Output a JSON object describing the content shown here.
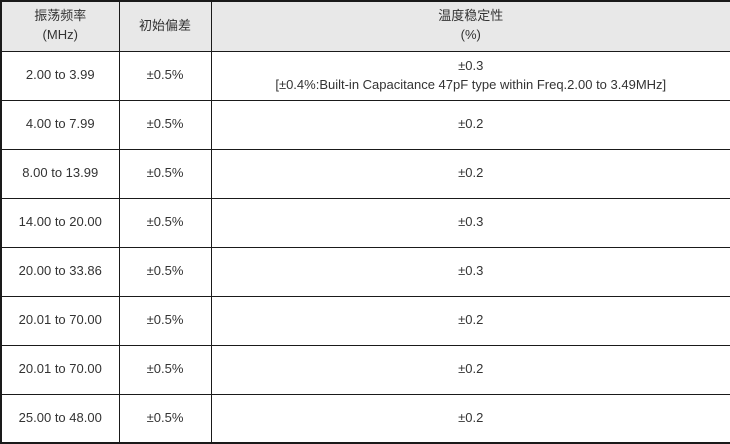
{
  "table": {
    "headers": {
      "freq_title": "振荡频率",
      "freq_unit": "(MHz)",
      "deviation_title": "初始偏差",
      "stability_title": "温度稳定性",
      "stability_unit": "(%)"
    },
    "rows": [
      {
        "freq": "2.00 to 3.99",
        "deviation": "±0.5%",
        "stability": "±0.3",
        "stability_note": "[±0.4%:Built-in Capacitance 47pF type within Freq.2.00 to 3.49MHz]"
      },
      {
        "freq": "4.00 to 7.99",
        "deviation": "±0.5%",
        "stability": "±0.2",
        "stability_note": ""
      },
      {
        "freq": "8.00 to 13.99",
        "deviation": "±0.5%",
        "stability": "±0.2",
        "stability_note": ""
      },
      {
        "freq": "14.00 to 20.00",
        "deviation": "±0.5%",
        "stability": "±0.3",
        "stability_note": ""
      },
      {
        "freq": "20.00 to 33.86",
        "deviation": "±0.5%",
        "stability": "±0.3",
        "stability_note": ""
      },
      {
        "freq": "20.01 to 70.00",
        "deviation": "±0.5%",
        "stability": "±0.2",
        "stability_note": ""
      },
      {
        "freq": "20.01 to 70.00",
        "deviation": "±0.5%",
        "stability": "±0.2",
        "stability_note": ""
      },
      {
        "freq": "25.00 to 48.00",
        "deviation": "±0.5%",
        "stability": "±0.2",
        "stability_note": ""
      }
    ],
    "colors": {
      "header_background": "#e8e8e8",
      "border": "#1a1a1a",
      "text": "#333333"
    }
  }
}
